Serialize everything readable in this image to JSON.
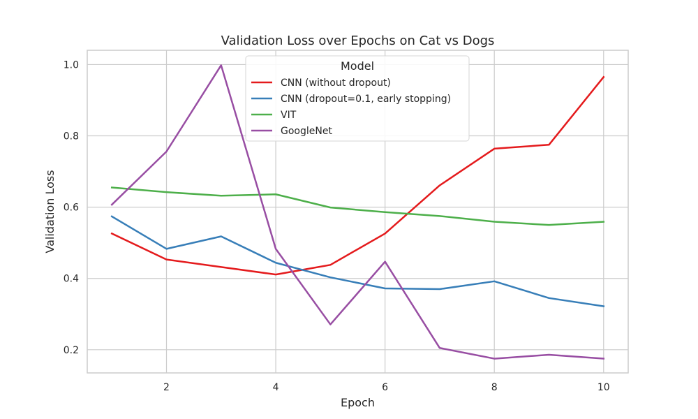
{
  "chart_data": {
    "type": "line",
    "title": "Validation Loss over Epochs on Cat vs Dogs",
    "xlabel": "Epoch",
    "ylabel": "Validation Loss",
    "xlim": [
      0.55,
      10.45
    ],
    "ylim": [
      0.135,
      1.04
    ],
    "xticks": [
      2,
      4,
      6,
      8,
      10
    ],
    "yticks": [
      0.2,
      0.4,
      0.6,
      0.8,
      1.0
    ],
    "xtick_labels": [
      "2",
      "4",
      "6",
      "8",
      "10"
    ],
    "ytick_labels": [
      "0.2",
      "0.4",
      "0.6",
      "0.8",
      "1.0"
    ],
    "grid": true,
    "legend": {
      "title": "Model",
      "placement": "upper center"
    },
    "x": [
      1,
      2,
      3,
      4,
      5,
      6,
      7,
      8,
      9,
      10
    ],
    "series": [
      {
        "name": "CNN (without dropout)",
        "color": "#e41a1c",
        "values": [
          0.526,
          0.453,
          0.432,
          0.411,
          0.438,
          0.526,
          0.661,
          0.764,
          0.775,
          0.965
        ]
      },
      {
        "name": "CNN (dropout=0.1, early stopping)",
        "color": "#377eb8",
        "values": [
          0.574,
          0.483,
          0.518,
          0.444,
          0.403,
          0.372,
          0.37,
          0.392,
          0.345,
          0.322
        ]
      },
      {
        "name": "VIT",
        "color": "#4daf4a",
        "values": [
          0.655,
          0.642,
          0.632,
          0.636,
          0.599,
          0.586,
          0.575,
          0.559,
          0.55,
          0.559
        ]
      },
      {
        "name": "GoogleNet",
        "color": "#984ea3",
        "values": [
          0.607,
          0.756,
          0.998,
          0.483,
          0.271,
          0.447,
          0.205,
          0.175,
          0.186,
          0.175
        ]
      }
    ]
  }
}
